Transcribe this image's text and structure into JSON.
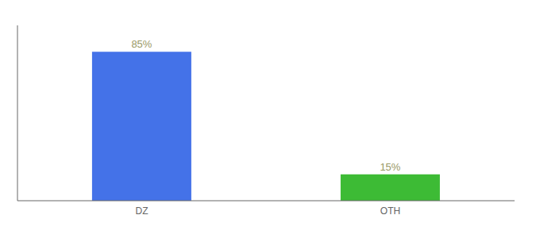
{
  "chart_data": {
    "type": "bar",
    "categories": [
      "DZ",
      "OTH"
    ],
    "values": [
      85,
      15
    ],
    "value_labels": [
      "85%",
      "15%"
    ],
    "colors": [
      "#4472e8",
      "#3dbb35"
    ],
    "ylim": [
      0,
      100
    ],
    "yticks": [],
    "data_labels": true,
    "tick_labels": "x",
    "grid": false
  }
}
